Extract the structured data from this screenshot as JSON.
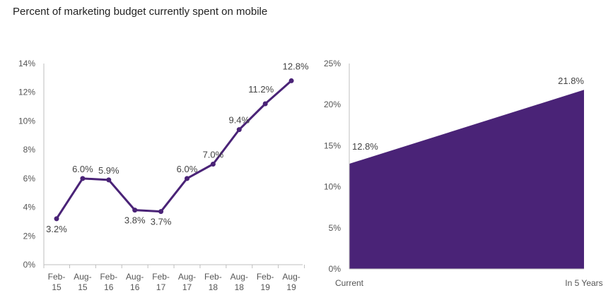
{
  "title": "Percent of marketing budget currently spent on mobile",
  "colors": {
    "accent": "#4a2377",
    "axis": "#bfbfbf",
    "text": "#555555"
  },
  "chart_data": [
    {
      "type": "line",
      "categories": [
        [
          "Feb-",
          "15"
        ],
        [
          "Aug-",
          "15"
        ],
        [
          "Feb-",
          "16"
        ],
        [
          "Aug-",
          "16"
        ],
        [
          "Feb-",
          "17"
        ],
        [
          "Aug-",
          "17"
        ],
        [
          "Feb-",
          "18"
        ],
        [
          "Aug-",
          "18"
        ],
        [
          "Feb-",
          "19"
        ],
        [
          "Aug-",
          "19"
        ]
      ],
      "values": [
        3.2,
        6.0,
        5.9,
        3.8,
        3.7,
        6.0,
        7.0,
        9.4,
        11.2,
        12.8
      ],
      "data_labels": [
        "3.2%",
        "6.0%",
        "5.9%",
        "3.8%",
        "3.7%",
        "6.0%",
        "7.0%",
        "9.4%",
        "11.2%",
        "12.8%"
      ],
      "yticks": [
        "0%",
        "2%",
        "4%",
        "6%",
        "8%",
        "10%",
        "12%",
        "14%"
      ],
      "ylim": [
        0,
        14
      ],
      "grid": false
    },
    {
      "type": "area",
      "categories": [
        "Current",
        "In 5 Years"
      ],
      "values": [
        12.8,
        21.8
      ],
      "data_labels": [
        "12.8%",
        "21.8%"
      ],
      "yticks": [
        "0%",
        "5%",
        "10%",
        "15%",
        "20%",
        "25%"
      ],
      "ylim": [
        0,
        25
      ],
      "grid": false
    }
  ]
}
